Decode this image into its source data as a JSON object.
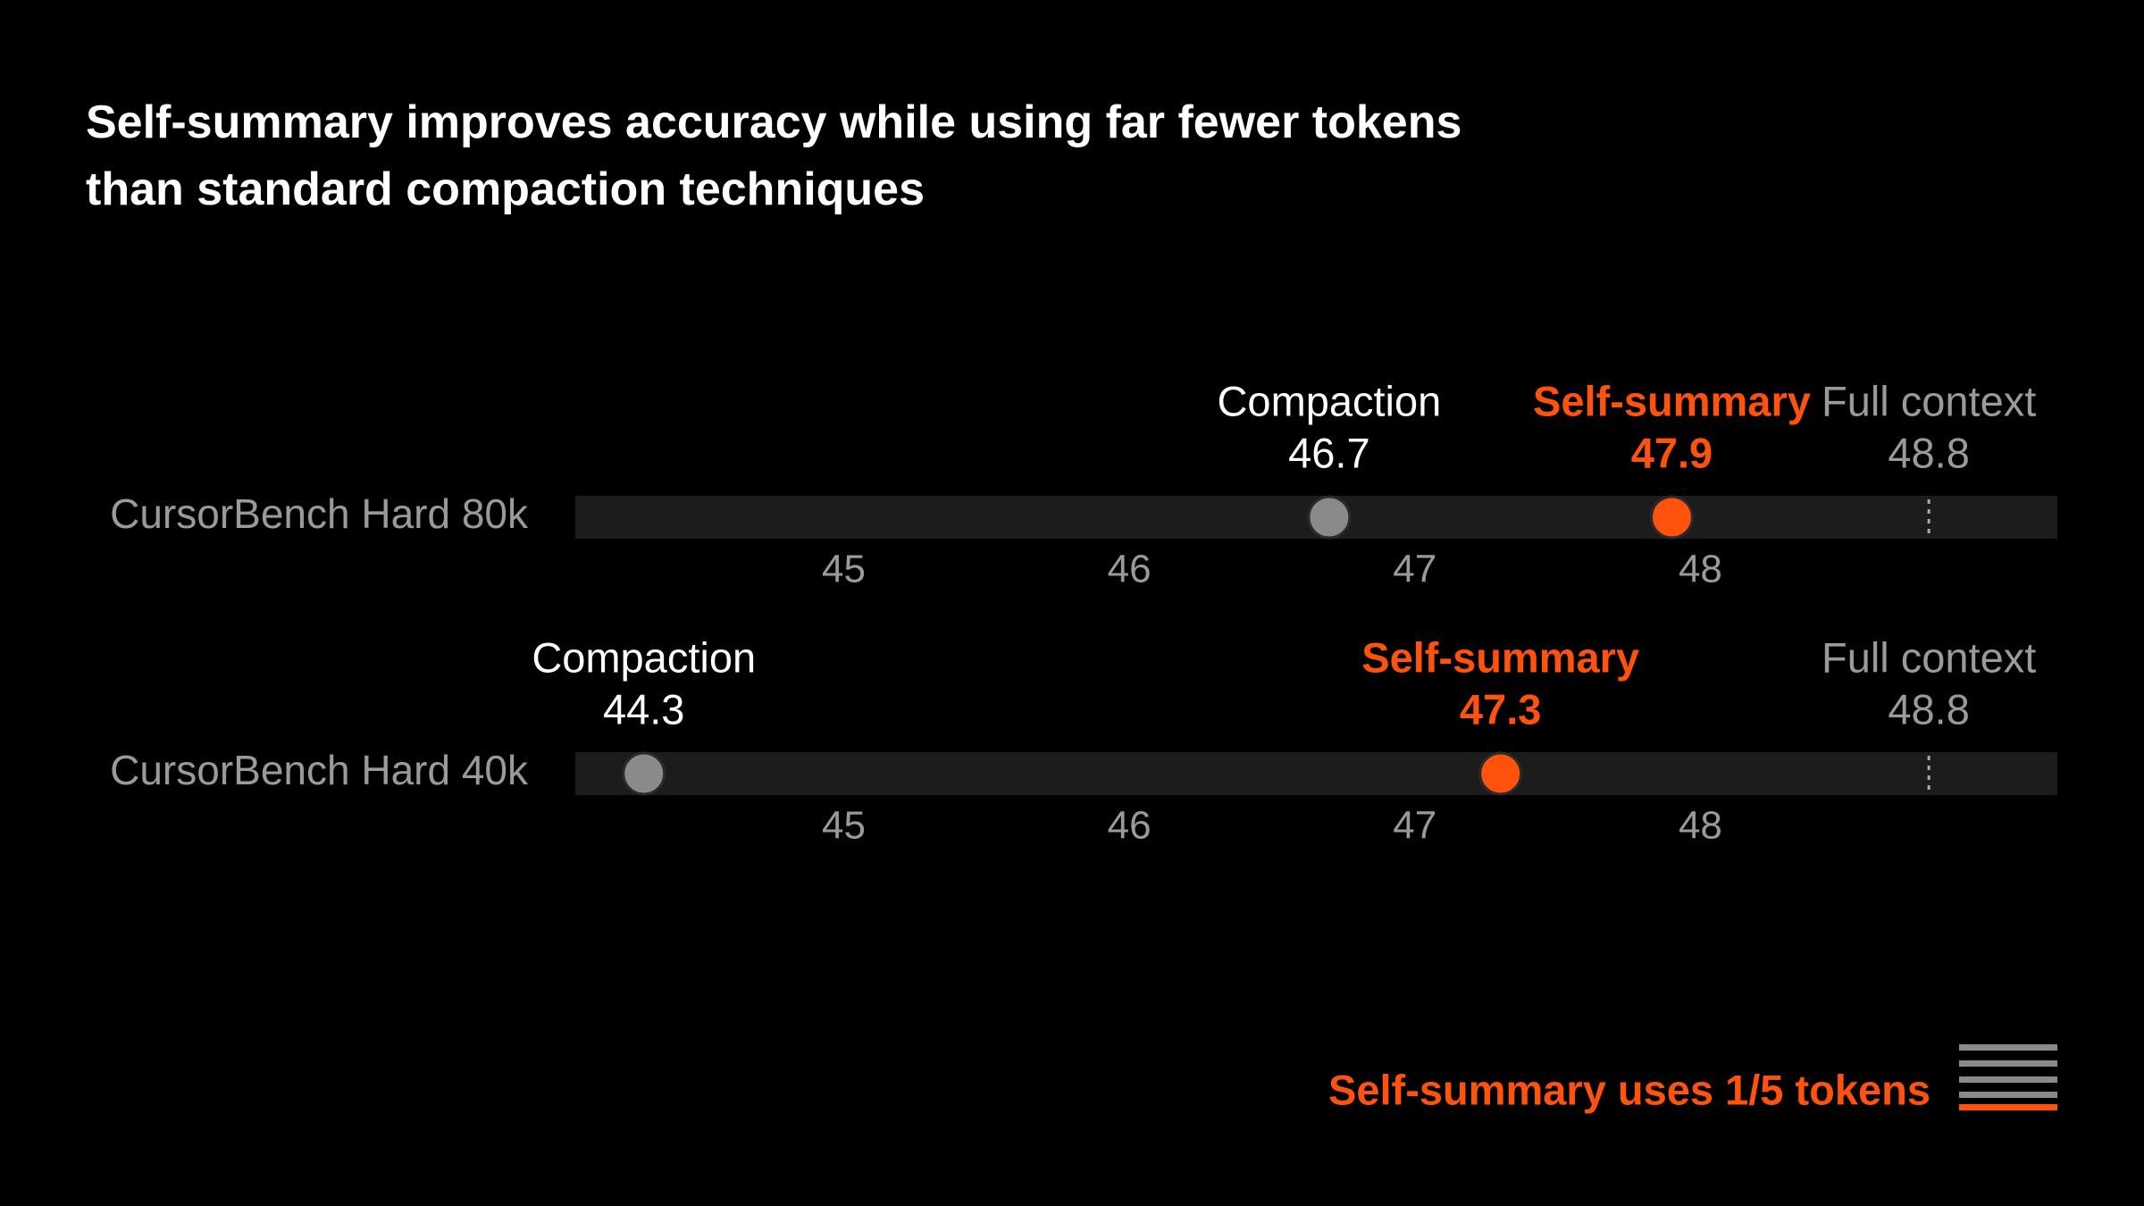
{
  "chart_data": {
    "type": "dot",
    "title": "Self-summary improves accuracy while using far fewer tokens than standard compaction techniques",
    "categories": [
      "CursorBench Hard 80k",
      "CursorBench Hard 40k"
    ],
    "series": [
      {
        "name": "Compaction",
        "color": "#8a8a8a",
        "label_color": "#ffffff",
        "marker": "circle",
        "values": [
          46.7,
          44.3
        ]
      },
      {
        "name": "Self-summary",
        "color": "#ff520d",
        "label_color": "#ff520d",
        "marker": "circle",
        "values": [
          47.9,
          47.3
        ]
      },
      {
        "name": "Full context",
        "color": "#aaaaaa",
        "label_color": "#9a9a9a",
        "marker": "dashed-line",
        "values": [
          48.8,
          48.8
        ]
      }
    ],
    "xlim": [
      44.06,
      49.25
    ],
    "xticks": [
      45,
      46,
      47,
      48
    ],
    "annotation": "Self-summary uses 1/5 tokens"
  }
}
